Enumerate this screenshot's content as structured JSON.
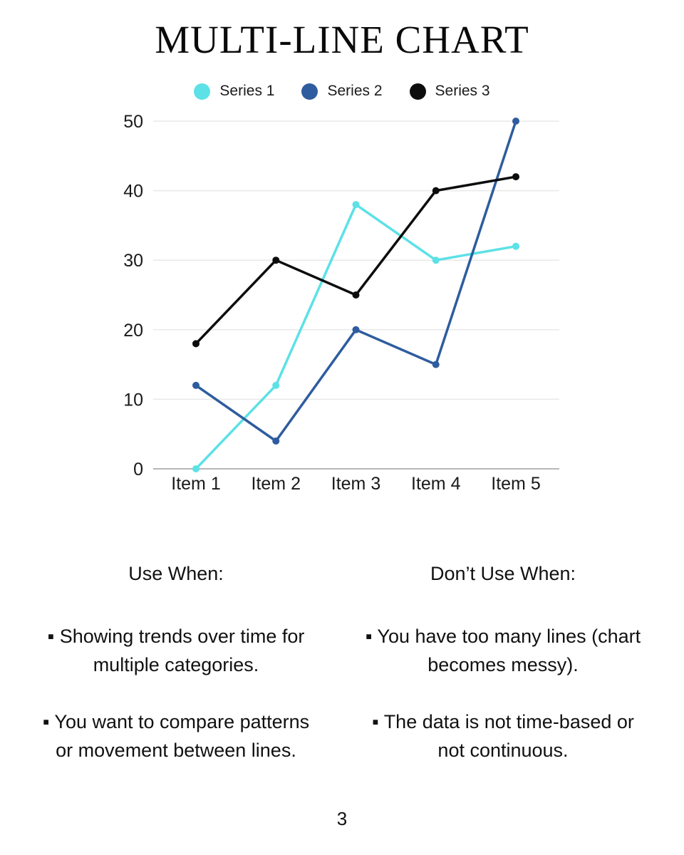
{
  "page": {
    "title": "MULTI-LINE CHART",
    "page_number": "3"
  },
  "chart_data": {
    "type": "line",
    "title": "MULTI-LINE CHART",
    "categories": [
      "Item 1",
      "Item 2",
      "Item 3",
      "Item 4",
      "Item 5"
    ],
    "series": [
      {
        "name": "Series 1",
        "color": "#5CE1E6",
        "values": [
          0,
          12,
          38,
          30,
          32
        ]
      },
      {
        "name": "Series 2",
        "color": "#2E5C9E",
        "values": [
          12,
          4,
          20,
          15,
          50
        ]
      },
      {
        "name": "Series 3",
        "color": "#0D0D0D",
        "values": [
          18,
          30,
          25,
          40,
          42
        ]
      }
    ],
    "yticks": [
      0,
      10,
      20,
      30,
      40,
      50
    ],
    "ylim": [
      0,
      50
    ],
    "xlabel": "",
    "ylabel": "",
    "grid": true,
    "legend_position": "top",
    "gridline_color": "#e9e9e9",
    "axis_line_color": "#b7b7b7",
    "tick_label_color": "#1a1a1a"
  },
  "usage": {
    "use": {
      "heading": "Use When:",
      "items": [
        [
          "▪ Showing trends over time for",
          "multiple categories."
        ],
        [
          "▪ You want to compare patterns",
          "or movement between lines."
        ]
      ]
    },
    "dont": {
      "heading": "Don’t Use When:",
      "items": [
        [
          "▪ You have too many lines (chart",
          "becomes messy)."
        ],
        [
          "▪ The data is not time-based or",
          "not continuous."
        ]
      ]
    }
  }
}
